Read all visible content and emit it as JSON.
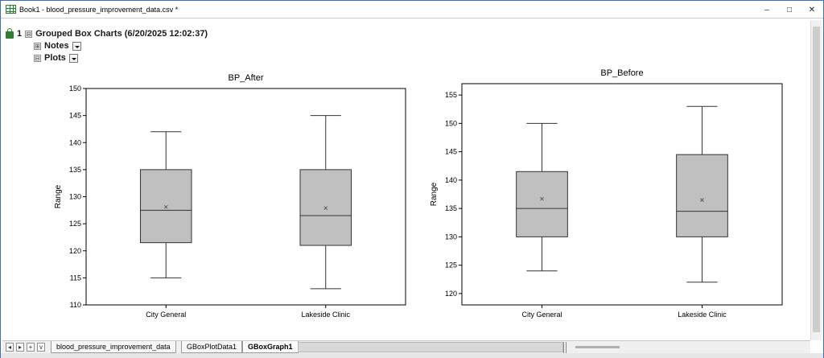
{
  "window": {
    "title": "Book1 - blood_pressure_improvement_data.csv *",
    "controls": [
      "–",
      "□",
      "✕"
    ]
  },
  "tree": {
    "index": "1",
    "root_label": "Grouped Box Charts (6/20/2025 12:02:37)",
    "notes_label": "Notes",
    "plots_label": "Plots",
    "root_expander": "⊟",
    "notes_expander": "⊞",
    "plots_expander": "⊟"
  },
  "chart_data": [
    {
      "type": "box",
      "title": "BP_After",
      "xlabel": "",
      "ylabel": "Range",
      "ylim": [
        110,
        150
      ],
      "yticks": [
        110,
        115,
        120,
        125,
        130,
        135,
        140,
        145,
        150
      ],
      "categories": [
        "City General",
        "Lakeside Clinic"
      ],
      "boxes": [
        {
          "min": 115,
          "q1": 121.5,
          "median": 127.5,
          "q3": 135,
          "max": 142,
          "mean": 128.1
        },
        {
          "min": 113,
          "q1": 121,
          "median": 126.5,
          "q3": 135,
          "max": 145,
          "mean": 127.9
        }
      ],
      "box_color": "#c0c0c0",
      "grid": false
    },
    {
      "type": "box",
      "title": "BP_Before",
      "xlabel": "",
      "ylabel": "Range",
      "ylim": [
        118,
        157
      ],
      "yticks": [
        120,
        125,
        130,
        135,
        140,
        145,
        150,
        155
      ],
      "categories": [
        "City General",
        "Lakeside Clinic"
      ],
      "boxes": [
        {
          "min": 124,
          "q1": 130,
          "median": 135,
          "q3": 141.5,
          "max": 150,
          "mean": 136.7
        },
        {
          "min": 122,
          "q1": 130,
          "median": 134.5,
          "q3": 144.5,
          "max": 153,
          "mean": 136.5
        }
      ],
      "box_color": "#c0c0c0",
      "grid": false
    }
  ],
  "tabs": {
    "nav": [
      "◂",
      "▸",
      "+",
      "v"
    ],
    "sheets": [
      {
        "label": "blood_pressure_improvement_data",
        "active": false
      },
      {
        "label": "GBoxPlotData1",
        "active": false
      },
      {
        "label": "GBoxGraph1",
        "active": true
      }
    ]
  }
}
